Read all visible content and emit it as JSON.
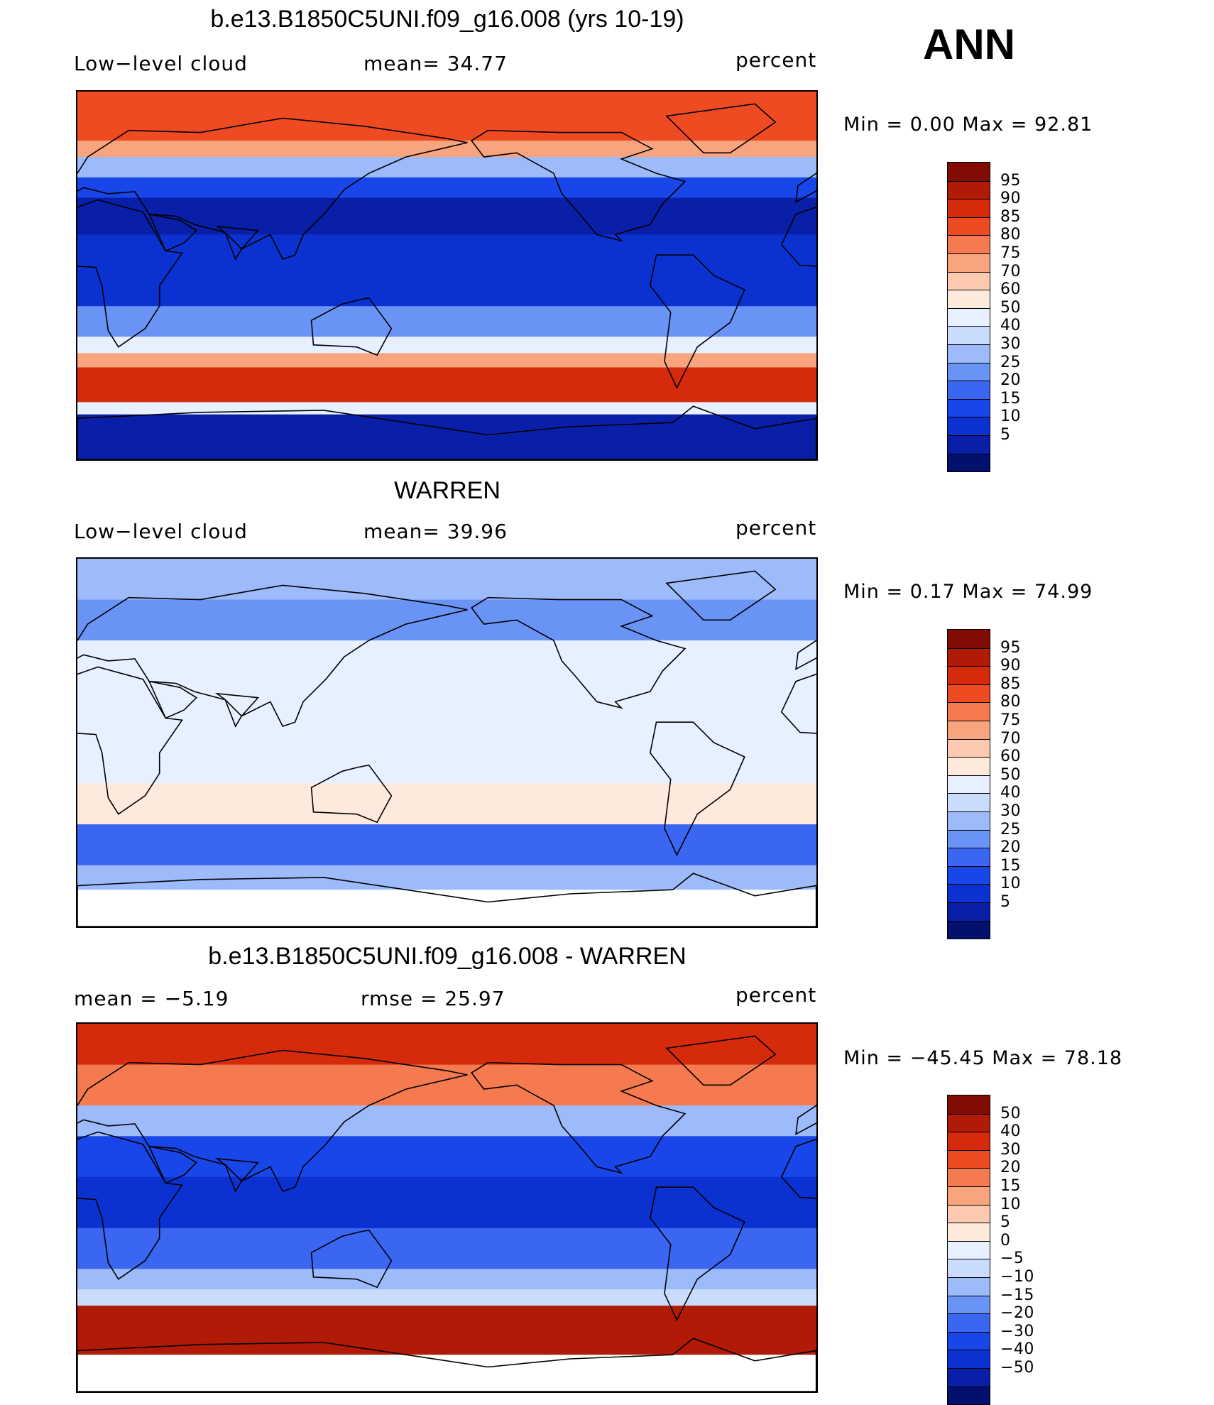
{
  "season": "ANN",
  "palettes": {
    "abs": [
      "#04106e",
      "#0a1fa8",
      "#0b32d0",
      "#1846e8",
      "#3a66f2",
      "#6a93f6",
      "#9dbbfa",
      "#c9dcfc",
      "#e7f0fe",
      "#fdeadd",
      "#fccab0",
      "#f8a47e",
      "#f57a50",
      "#ef4b22",
      "#d62a0c",
      "#b01a06",
      "#820b03"
    ],
    "diff": [
      "#04106e",
      "#0a1fa8",
      "#0b32d0",
      "#1846e8",
      "#3a66f2",
      "#6a93f6",
      "#9dbbfa",
      "#c9dcfc",
      "#e7f0fe",
      "#fdeadd",
      "#fccab0",
      "#f8a47e",
      "#f57a50",
      "#ef4b22",
      "#d62a0c",
      "#b01a06",
      "#820b03"
    ]
  },
  "panels": [
    {
      "id": "model",
      "title": "b.e13.B1850C5UNI.f09_g16.008 (yrs 10-19)",
      "left_label": "Low−level cloud",
      "center_label": "mean=   34.77",
      "units": "percent",
      "stats": "Min  =     0.00  Max  =    92.81",
      "colorbar_levels": [
        "95",
        "90",
        "85",
        "80",
        "75",
        "70",
        "60",
        "50",
        "40",
        "30",
        "25",
        "20",
        "15",
        "10",
        "5"
      ],
      "palette": "abs",
      "bands": [
        {
          "lat_top": 90,
          "lat_bottom": 66,
          "level": 13
        },
        {
          "lat_top": 66,
          "lat_bottom": 58,
          "level": 11
        },
        {
          "lat_top": 58,
          "lat_bottom": 48,
          "level": 6
        },
        {
          "lat_top": 48,
          "lat_bottom": 38,
          "level": 3
        },
        {
          "lat_top": 38,
          "lat_bottom": 20,
          "level": 1
        },
        {
          "lat_top": 20,
          "lat_bottom": -15,
          "level": 2
        },
        {
          "lat_top": -15,
          "lat_bottom": -30,
          "level": 5
        },
        {
          "lat_top": -30,
          "lat_bottom": -38,
          "level": 8
        },
        {
          "lat_top": -38,
          "lat_bottom": -45,
          "level": 11
        },
        {
          "lat_top": -45,
          "lat_bottom": -62,
          "level": 14
        },
        {
          "lat_top": -62,
          "lat_bottom": -68,
          "level": 8
        },
        {
          "lat_top": -68,
          "lat_bottom": -90,
          "level": 1
        }
      ]
    },
    {
      "id": "obs",
      "title": "WARREN",
      "left_label": "Low−level cloud",
      "center_label": "mean=   39.96",
      "units": "percent",
      "stats": "Min  =     0.17  Max  =    74.99",
      "colorbar_levels": [
        "95",
        "90",
        "85",
        "80",
        "75",
        "70",
        "60",
        "50",
        "40",
        "30",
        "25",
        "20",
        "15",
        "10",
        "5"
      ],
      "palette": "abs",
      "bands": [
        {
          "lat_top": 90,
          "lat_bottom": 70,
          "level": 6
        },
        {
          "lat_top": 70,
          "lat_bottom": 50,
          "level": 5
        },
        {
          "lat_top": 50,
          "lat_bottom": 30,
          "level": 8
        },
        {
          "lat_top": 30,
          "lat_bottom": 5,
          "level": 8
        },
        {
          "lat_top": 5,
          "lat_bottom": -20,
          "level": 8
        },
        {
          "lat_top": -20,
          "lat_bottom": -40,
          "level": 9
        },
        {
          "lat_top": -40,
          "lat_bottom": -60,
          "level": 4
        },
        {
          "lat_top": -60,
          "lat_bottom": -72,
          "level": 6
        },
        {
          "lat_top": -72,
          "lat_bottom": -90,
          "level": -1
        }
      ]
    },
    {
      "id": "diff",
      "title": "b.e13.B1850C5UNI.f09_g16.008 - WARREN",
      "left_label": "mean  =    −5.19",
      "center_label": "rmse  =    25.97",
      "units": "percent",
      "stats": "Min  =  −45.45  Max  =    78.18",
      "colorbar_levels": [
        "50",
        "40",
        "30",
        "20",
        "15",
        "10",
        "5",
        "0",
        "−5",
        "−10",
        "−15",
        "−20",
        "−30",
        "−40",
        "−50"
      ],
      "palette": "diff",
      "bands": [
        {
          "lat_top": 90,
          "lat_bottom": 70,
          "level": 14
        },
        {
          "lat_top": 70,
          "lat_bottom": 50,
          "level": 12
        },
        {
          "lat_top": 50,
          "lat_bottom": 35,
          "level": 6
        },
        {
          "lat_top": 35,
          "lat_bottom": 15,
          "level": 3
        },
        {
          "lat_top": 15,
          "lat_bottom": -10,
          "level": 2
        },
        {
          "lat_top": -10,
          "lat_bottom": -30,
          "level": 4
        },
        {
          "lat_top": -30,
          "lat_bottom": -40,
          "level": 6
        },
        {
          "lat_top": -40,
          "lat_bottom": -48,
          "level": 7
        },
        {
          "lat_top": -48,
          "lat_bottom": -72,
          "level": 15
        },
        {
          "lat_top": -72,
          "lat_bottom": -90,
          "level": -1
        }
      ]
    }
  ]
}
